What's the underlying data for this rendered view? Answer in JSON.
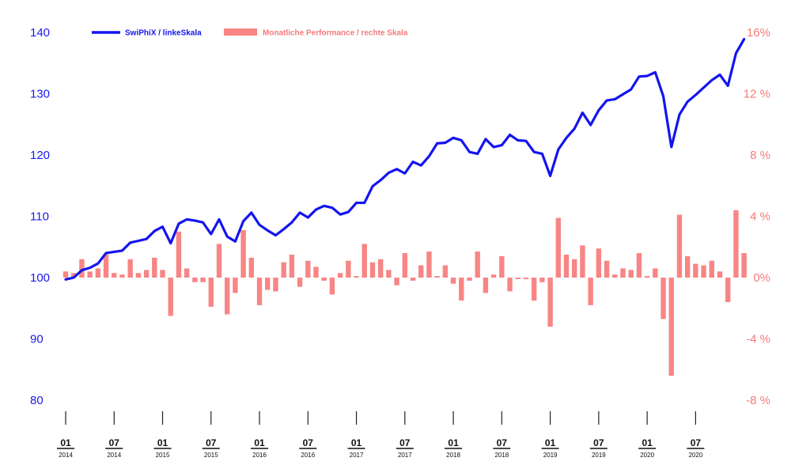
{
  "chart_data": {
    "type": "bar+line",
    "legend": {
      "line_label": "SwiPhiX / linkeSkala",
      "bar_label": "Monatliche Performance / rechte Skala",
      "placement": "top-left"
    },
    "colors": {
      "line": "#1414f0",
      "bars": "#f88585",
      "left_axis": "#1a1aee",
      "right_axis": "#f47b7b"
    },
    "y_left": {
      "min": 80,
      "max": 140,
      "ticks": [
        "140",
        "130",
        "120",
        "110",
        "100",
        "90",
        "80"
      ]
    },
    "y_right": {
      "min": -8,
      "max": 16,
      "ticks": [
        "16%",
        "12 %",
        "8 %",
        "4 %",
        "0%",
        "-4 %",
        "-8 %"
      ]
    },
    "x_ticks": [
      {
        "month": "01",
        "year": "2014"
      },
      {
        "month": "07",
        "year": "2014"
      },
      {
        "month": "01",
        "year": "2015"
      },
      {
        "month": "07",
        "year": "2015"
      },
      {
        "month": "01",
        "year": "2016"
      },
      {
        "month": "07",
        "year": "2016"
      },
      {
        "month": "01",
        "year": "2017"
      },
      {
        "month": "07",
        "year": "2017"
      },
      {
        "month": "01",
        "year": "2018"
      },
      {
        "month": "07",
        "year": "2018"
      },
      {
        "month": "01",
        "year": "2019"
      },
      {
        "month": "07",
        "year": "2019"
      },
      {
        "month": "01",
        "year": "2020"
      },
      {
        "month": "07",
        "year": "2020"
      }
    ],
    "index_series": [
      99.7,
      100.0,
      101.2,
      101.6,
      102.3,
      104.0,
      104.2,
      104.4,
      105.7,
      106.0,
      106.3,
      107.6,
      108.3,
      105.6,
      108.8,
      109.5,
      109.3,
      109.0,
      107.1,
      109.5,
      106.7,
      105.9,
      109.2,
      110.6,
      108.6,
      107.7,
      106.9,
      107.9,
      109.0,
      110.6,
      109.8,
      111.1,
      111.7,
      111.4,
      110.3,
      110.7,
      112.2,
      112.2,
      114.9,
      115.9,
      117.1,
      117.7,
      117.0,
      118.9,
      118.3,
      119.8,
      121.9,
      122.0,
      122.8,
      122.4,
      120.5,
      120.2,
      122.6,
      121.3,
      121.6,
      123.3,
      122.4,
      122.3,
      120.5,
      120.2,
      116.6,
      120.9,
      122.8,
      124.3,
      126.9,
      124.9,
      127.3,
      128.9,
      129.1,
      129.9,
      130.7,
      132.8,
      132.9,
      133.5,
      129.6,
      121.3,
      126.6,
      128.7,
      129.8,
      131.0,
      132.2,
      133.1,
      131.3,
      136.6,
      138.9
    ],
    "monthly_performance_pct": [
      0.4,
      0.3,
      1.2,
      0.4,
      0.6,
      1.5,
      0.3,
      0.2,
      1.2,
      0.3,
      0.5,
      1.3,
      0.5,
      -2.5,
      3.0,
      0.6,
      -0.3,
      -0.3,
      -1.9,
      2.2,
      -2.4,
      -1.0,
      3.1,
      1.3,
      -1.8,
      -0.8,
      -0.9,
      1.0,
      1.5,
      -0.6,
      1.1,
      0.7,
      -0.2,
      -1.1,
      0.3,
      1.1,
      0.1,
      2.2,
      1.0,
      1.2,
      0.5,
      -0.5,
      1.6,
      -0.2,
      0.8,
      1.7,
      0.1,
      0.8,
      -0.4,
      -1.5,
      -0.2,
      1.7,
      -1.0,
      0.2,
      1.4,
      -0.9,
      -0.1,
      -0.1,
      -1.5,
      -0.3,
      -3.2,
      3.9,
      1.5,
      1.2,
      2.1,
      -1.8,
      1.9,
      1.1,
      0.2,
      0.6,
      0.5,
      1.6,
      0.1,
      0.6,
      -2.7,
      -6.4,
      4.1,
      1.4,
      0.9,
      0.8,
      1.1,
      0.4,
      -1.6,
      4.4,
      1.6
    ]
  }
}
